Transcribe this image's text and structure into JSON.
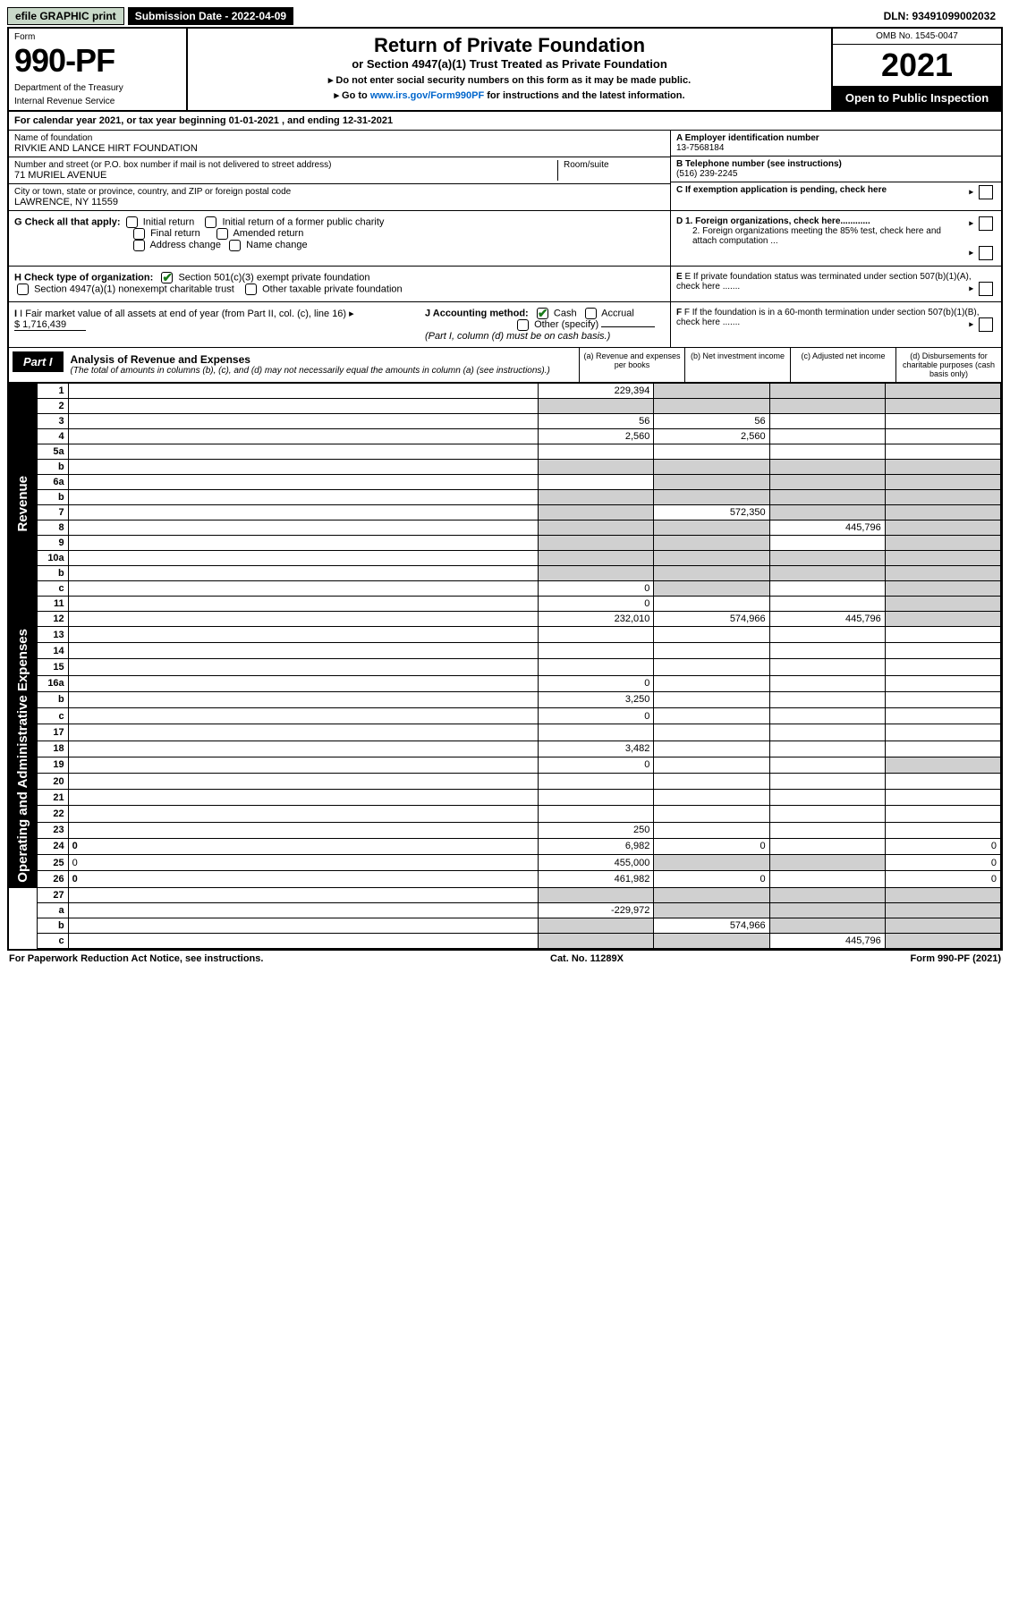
{
  "top": {
    "efile": "efile GRAPHIC print",
    "submission": "Submission Date - 2022-04-09",
    "dln": "DLN: 93491099002032"
  },
  "header": {
    "form_label": "Form",
    "form_number": "990-PF",
    "dept1": "Department of the Treasury",
    "dept2": "Internal Revenue Service",
    "title": "Return of Private Foundation",
    "subtitle": "or Section 4947(a)(1) Trust Treated as Private Foundation",
    "instr1": "▸ Do not enter social security numbers on this form as it may be made public.",
    "instr2_pre": "▸ Go to ",
    "instr2_link": "www.irs.gov/Form990PF",
    "instr2_post": " for instructions and the latest information.",
    "omb": "OMB No. 1545-0047",
    "year": "2021",
    "open": "Open to Public Inspection"
  },
  "cal_year": {
    "text_pre": "For calendar year 2021, or tax year beginning ",
    "begin": "01-01-2021",
    "mid": " , and ending ",
    "end": "12-31-2021"
  },
  "entity": {
    "name_label": "Name of foundation",
    "name": "RIVKIE AND LANCE HIRT FOUNDATION",
    "addr_label": "Number and street (or P.O. box number if mail is not delivered to street address)",
    "addr": "71 MURIEL AVENUE",
    "room_label": "Room/suite",
    "city_label": "City or town, state or province, country, and ZIP or foreign postal code",
    "city": "LAWRENCE, NY  11559",
    "a_label": "A Employer identification number",
    "a_value": "13-7568184",
    "b_label": "B Telephone number (see instructions)",
    "b_value": "(516) 239-2245",
    "c_label": "C If exemption application is pending, check here"
  },
  "checks": {
    "g_label": "G Check all that apply:",
    "g_opts": [
      "Initial return",
      "Initial return of a former public charity",
      "Final return",
      "Amended return",
      "Address change",
      "Name change"
    ],
    "d1": "D 1. Foreign organizations, check here............",
    "d2": "2. Foreign organizations meeting the 85% test, check here and attach computation ...",
    "h_label": "H Check type of organization:",
    "h_opts": [
      "Section 501(c)(3) exempt private foundation",
      "Section 4947(a)(1) nonexempt charitable trust",
      "Other taxable private foundation"
    ],
    "e": "E If private foundation status was terminated under section 507(b)(1)(A), check here .......",
    "i_label": "I Fair market value of all assets at end of year (from Part II, col. (c), line 16)",
    "i_value": "$  1,716,439",
    "j_label": "J Accounting method:",
    "j_opts": [
      "Cash",
      "Accrual",
      "Other (specify)"
    ],
    "j_note": "(Part I, column (d) must be on cash basis.)",
    "f": "F If the foundation is in a 60-month termination under section 507(b)(1)(B), check here ......."
  },
  "part1": {
    "tab": "Part I",
    "title": "Analysis of Revenue and Expenses",
    "title_sub": "(The total of amounts in columns (b), (c), and (d) may not necessarily equal the amounts in column (a) (see instructions).)",
    "col_a": "(a)   Revenue and expenses per books",
    "col_b": "(b)   Net investment income",
    "col_c": "(c)   Adjusted net income",
    "col_d": "(d)   Disbursements for charitable purposes (cash basis only)"
  },
  "sides": {
    "revenue": "Revenue",
    "opex": "Operating and Administrative Expenses"
  },
  "rows": [
    {
      "n": "1",
      "d": "",
      "a": "229,394",
      "b": "",
      "c": "",
      "shade_b": true,
      "shade_c": true,
      "shade_d": true
    },
    {
      "n": "2",
      "d": "",
      "a": "",
      "b": "",
      "c": "",
      "all_shade": true
    },
    {
      "n": "3",
      "d": "",
      "a": "56",
      "b": "56",
      "c": ""
    },
    {
      "n": "4",
      "d": "",
      "a": "2,560",
      "b": "2,560",
      "c": ""
    },
    {
      "n": "5a",
      "d": "",
      "a": "",
      "b": "",
      "c": ""
    },
    {
      "n": "b",
      "d": "",
      "a": "",
      "b": "",
      "c": "",
      "all_shade": true,
      "inline": true
    },
    {
      "n": "6a",
      "d": "",
      "a": "",
      "b": "",
      "c": "",
      "shade_b": true,
      "shade_c": true,
      "shade_d": true
    },
    {
      "n": "b",
      "d": "",
      "a": "",
      "b": "",
      "c": "",
      "all_shade": true,
      "inline": true
    },
    {
      "n": "7",
      "d": "",
      "a": "",
      "b": "572,350",
      "c": "",
      "shade_a": true,
      "shade_c": true,
      "shade_d": true
    },
    {
      "n": "8",
      "d": "",
      "a": "",
      "b": "",
      "c": "445,796",
      "shade_a": true,
      "shade_b": true,
      "shade_d": true
    },
    {
      "n": "9",
      "d": "",
      "a": "",
      "b": "",
      "c": "",
      "shade_a": true,
      "shade_b": true,
      "shade_d": true
    },
    {
      "n": "10a",
      "d": "",
      "a": "",
      "b": "",
      "c": "",
      "all_shade": true,
      "inline": true
    },
    {
      "n": "b",
      "d": "",
      "a": "",
      "b": "",
      "c": "",
      "all_shade": true,
      "inline": true
    },
    {
      "n": "c",
      "d": "",
      "a": "0",
      "b": "",
      "c": "",
      "shade_b": true,
      "shade_d": true
    },
    {
      "n": "11",
      "d": "",
      "a": "0",
      "b": "",
      "c": "",
      "shade_d": true
    },
    {
      "n": "12",
      "d": "",
      "a": "232,010",
      "b": "574,966",
      "c": "445,796",
      "bold": true,
      "shade_d": true
    }
  ],
  "rows2": [
    {
      "n": "13",
      "d": "",
      "a": "",
      "b": "",
      "c": ""
    },
    {
      "n": "14",
      "d": "",
      "a": "",
      "b": "",
      "c": ""
    },
    {
      "n": "15",
      "d": "",
      "a": "",
      "b": "",
      "c": ""
    },
    {
      "n": "16a",
      "d": "",
      "a": "0",
      "b": "",
      "c": ""
    },
    {
      "n": "b",
      "d": "",
      "a": "3,250",
      "b": "",
      "c": ""
    },
    {
      "n": "c",
      "d": "",
      "a": "0",
      "b": "",
      "c": ""
    },
    {
      "n": "17",
      "d": "",
      "a": "",
      "b": "",
      "c": ""
    },
    {
      "n": "18",
      "d": "",
      "a": "3,482",
      "b": "",
      "c": ""
    },
    {
      "n": "19",
      "d": "",
      "a": "0",
      "b": "",
      "c": "",
      "shade_d": true
    },
    {
      "n": "20",
      "d": "",
      "a": "",
      "b": "",
      "c": ""
    },
    {
      "n": "21",
      "d": "",
      "a": "",
      "b": "",
      "c": ""
    },
    {
      "n": "22",
      "d": "",
      "a": "",
      "b": "",
      "c": ""
    },
    {
      "n": "23",
      "d": "",
      "a": "250",
      "b": "",
      "c": ""
    },
    {
      "n": "24",
      "d": "0",
      "a": "6,982",
      "b": "0",
      "c": "",
      "bold": true
    },
    {
      "n": "25",
      "d": "0",
      "a": "455,000",
      "b": "",
      "c": "",
      "shade_b": true,
      "shade_c": true
    },
    {
      "n": "26",
      "d": "0",
      "a": "461,982",
      "b": "0",
      "c": "",
      "bold": true
    }
  ],
  "rows3": [
    {
      "n": "27",
      "d": "",
      "a": "",
      "b": "",
      "c": "",
      "all_shade": true
    },
    {
      "n": "a",
      "d": "",
      "a": "-229,972",
      "b": "",
      "c": "",
      "bold": true,
      "shade_b": true,
      "shade_c": true,
      "shade_d": true
    },
    {
      "n": "b",
      "d": "",
      "a": "",
      "b": "574,966",
      "c": "",
      "bold": true,
      "shade_a": true,
      "shade_c": true,
      "shade_d": true
    },
    {
      "n": "c",
      "d": "",
      "a": "",
      "b": "",
      "c": "445,796",
      "bold": true,
      "shade_a": true,
      "shade_b": true,
      "shade_d": true
    }
  ],
  "footer": {
    "left": "For Paperwork Reduction Act Notice, see instructions.",
    "mid": "Cat. No. 11289X",
    "right": "Form 990-PF (2021)"
  }
}
